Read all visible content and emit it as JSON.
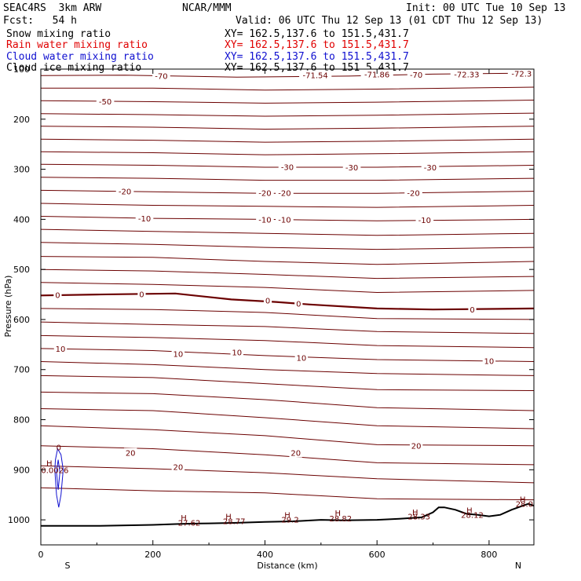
{
  "header": {
    "model": "SEAC4RS  3km ARW",
    "center": "NCAR/MMM",
    "init": "Init: 00 UTC Tue 10 Sep 13",
    "fcst": "Fcst:   54 h",
    "valid": "Valid: 06 UTC Thu 12 Sep 13 (01 CDT Thu 12 Sep 13)"
  },
  "legend": [
    {
      "name": "Snow mixing ratio",
      "color": "#000000",
      "xy": "XY= 162.5,137.6 to 151.5,431.7"
    },
    {
      "name": "Rain water mixing ratio",
      "color": "#e00000",
      "xy": "XY= 162.5,137.6 to 151.5,431.7"
    },
    {
      "name": "Cloud water mixing ratio",
      "color": "#1010d0",
      "xy": "XY= 162.5,137.6 to 151.5,431.7"
    },
    {
      "name": "Cloud ice mixing ratio",
      "color": "#000000",
      "xy": "XY= 162.5,137.6 to 151.5,431.7"
    }
  ],
  "colors": {
    "isotherm": "#6b0000",
    "terrain": "#000000",
    "cloud": "#1010d0"
  },
  "chart_data": {
    "type": "line",
    "xlabel": "Distance (km)",
    "ylabel": "Pressure (hPa)",
    "xlim": [
      0,
      880
    ],
    "ylim": [
      1050,
      100
    ],
    "x_ticks": [
      0,
      200,
      400,
      600,
      800
    ],
    "y_ticks": [
      100,
      200,
      300,
      400,
      500,
      600,
      700,
      800,
      900,
      1000
    ],
    "left_label": "S",
    "right_label": "N",
    "isotherms": [
      {
        "value": "-70",
        "points": [
          [
            0,
            113
          ],
          [
            150,
            112
          ],
          [
            350,
            116
          ],
          [
            550,
            114
          ],
          [
            700,
            110
          ],
          [
            880,
            108
          ]
        ]
      },
      {
        "value": "",
        "points": [
          [
            0,
            138
          ],
          [
            200,
            138
          ],
          [
            400,
            142
          ],
          [
            600,
            140
          ],
          [
            880,
            136
          ]
        ]
      },
      {
        "value": "-50",
        "points": [
          [
            0,
            163
          ],
          [
            200,
            165
          ],
          [
            400,
            168
          ],
          [
            600,
            166
          ],
          [
            880,
            162
          ]
        ]
      },
      {
        "value": "",
        "points": [
          [
            0,
            189
          ],
          [
            200,
            191
          ],
          [
            400,
            194
          ],
          [
            600,
            192
          ],
          [
            880,
            188
          ]
        ]
      },
      {
        "value": "",
        "points": [
          [
            0,
            214
          ],
          [
            200,
            216
          ],
          [
            400,
            220
          ],
          [
            600,
            218
          ],
          [
            880,
            214
          ]
        ]
      },
      {
        "value": "",
        "points": [
          [
            0,
            240
          ],
          [
            200,
            242
          ],
          [
            400,
            246
          ],
          [
            600,
            244
          ],
          [
            880,
            240
          ]
        ]
      },
      {
        "value": "",
        "points": [
          [
            0,
            265
          ],
          [
            200,
            267
          ],
          [
            400,
            271
          ],
          [
            600,
            269
          ],
          [
            880,
            265
          ]
        ]
      },
      {
        "value": "-30",
        "points": [
          [
            0,
            290
          ],
          [
            200,
            292
          ],
          [
            400,
            296
          ],
          [
            600,
            296
          ],
          [
            880,
            292
          ]
        ]
      },
      {
        "value": "",
        "points": [
          [
            0,
            316
          ],
          [
            200,
            318
          ],
          [
            400,
            322
          ],
          [
            600,
            322
          ],
          [
            880,
            318
          ]
        ]
      },
      {
        "value": "-20",
        "points": [
          [
            0,
            342
          ],
          [
            200,
            345
          ],
          [
            400,
            348
          ],
          [
            600,
            348
          ],
          [
            880,
            344
          ]
        ]
      },
      {
        "value": "",
        "points": [
          [
            0,
            368
          ],
          [
            200,
            372
          ],
          [
            400,
            374
          ],
          [
            600,
            376
          ],
          [
            880,
            372
          ]
        ]
      },
      {
        "value": "-10",
        "points": [
          [
            0,
            394
          ],
          [
            200,
            398
          ],
          [
            400,
            400
          ],
          [
            600,
            403
          ],
          [
            880,
            400
          ]
        ]
      },
      {
        "value": "",
        "points": [
          [
            0,
            420
          ],
          [
            200,
            424
          ],
          [
            400,
            428
          ],
          [
            600,
            432
          ],
          [
            880,
            428
          ]
        ]
      },
      {
        "value": "",
        "points": [
          [
            0,
            446
          ],
          [
            200,
            450
          ],
          [
            400,
            456
          ],
          [
            600,
            460
          ],
          [
            880,
            456
          ]
        ]
      },
      {
        "value": "",
        "points": [
          [
            0,
            474
          ],
          [
            200,
            476
          ],
          [
            400,
            484
          ],
          [
            600,
            490
          ],
          [
            880,
            484
          ]
        ]
      },
      {
        "value": "",
        "points": [
          [
            0,
            500
          ],
          [
            200,
            503
          ],
          [
            400,
            510
          ],
          [
            600,
            518
          ],
          [
            880,
            514
          ]
        ]
      },
      {
        "value": "",
        "points": [
          [
            0,
            526
          ],
          [
            200,
            530
          ],
          [
            400,
            536
          ],
          [
            600,
            546
          ],
          [
            880,
            542
          ]
        ]
      },
      {
        "value": "0",
        "bold": true,
        "points": [
          [
            0,
            552
          ],
          [
            100,
            550
          ],
          [
            240,
            548
          ],
          [
            340,
            560
          ],
          [
            420,
            565
          ],
          [
            480,
            570
          ],
          [
            600,
            578
          ],
          [
            700,
            580
          ],
          [
            880,
            578
          ]
        ]
      },
      {
        "value": "",
        "points": [
          [
            0,
            578
          ],
          [
            200,
            580
          ],
          [
            400,
            586
          ],
          [
            600,
            598
          ],
          [
            880,
            600
          ]
        ]
      },
      {
        "value": "",
        "points": [
          [
            0,
            605
          ],
          [
            200,
            610
          ],
          [
            400,
            614
          ],
          [
            600,
            624
          ],
          [
            880,
            628
          ]
        ]
      },
      {
        "value": "",
        "points": [
          [
            0,
            632
          ],
          [
            200,
            636
          ],
          [
            400,
            642
          ],
          [
            600,
            652
          ],
          [
            880,
            656
          ]
        ]
      },
      {
        "value": "10",
        "points": [
          [
            0,
            658
          ],
          [
            200,
            662
          ],
          [
            400,
            672
          ],
          [
            600,
            680
          ],
          [
            880,
            684
          ]
        ]
      },
      {
        "value": "",
        "points": [
          [
            0,
            684
          ],
          [
            200,
            690
          ],
          [
            400,
            700
          ],
          [
            600,
            708
          ],
          [
            880,
            712
          ]
        ]
      },
      {
        "value": "",
        "points": [
          [
            0,
            712
          ],
          [
            200,
            716
          ],
          [
            400,
            728
          ],
          [
            600,
            740
          ],
          [
            880,
            742
          ]
        ]
      },
      {
        "value": "",
        "points": [
          [
            0,
            745
          ],
          [
            200,
            748
          ],
          [
            400,
            760
          ],
          [
            600,
            776
          ],
          [
            880,
            782
          ]
        ]
      },
      {
        "value": "",
        "points": [
          [
            0,
            778
          ],
          [
            200,
            782
          ],
          [
            400,
            796
          ],
          [
            600,
            812
          ],
          [
            880,
            818
          ]
        ]
      },
      {
        "value": "20",
        "points": [
          [
            0,
            812
          ],
          [
            200,
            820
          ],
          [
            400,
            832
          ],
          [
            600,
            850
          ],
          [
            880,
            852
          ]
        ]
      },
      {
        "value": "",
        "points": [
          [
            0,
            852
          ],
          [
            200,
            858
          ],
          [
            400,
            870
          ],
          [
            600,
            886
          ],
          [
            880,
            890
          ]
        ]
      },
      {
        "value": "",
        "points": [
          [
            0,
            892
          ],
          [
            200,
            898
          ],
          [
            400,
            906
          ],
          [
            600,
            918
          ],
          [
            880,
            926
          ]
        ]
      },
      {
        "value": "",
        "points": [
          [
            0,
            936
          ],
          [
            200,
            942
          ],
          [
            400,
            946
          ],
          [
            600,
            958
          ],
          [
            880,
            960
          ]
        ]
      }
    ],
    "isotherm_labels": [
      {
        "text": "-70",
        "x": 215,
        "p": 113
      },
      {
        "text": "-71.54",
        "x": 490,
        "p": 112
      },
      {
        "text": "-71.86",
        "x": 600,
        "p": 110
      },
      {
        "text": "-70",
        "x": 670,
        "p": 111
      },
      {
        "text": "-72.33",
        "x": 760,
        "p": 110
      },
      {
        "text": "-72.3",
        "x": 858,
        "p": 109
      },
      {
        "text": "-50",
        "x": 115,
        "p": 164
      },
      {
        "text": "-30",
        "x": 440,
        "p": 295
      },
      {
        "text": "-30",
        "x": 555,
        "p": 296
      },
      {
        "text": "-30",
        "x": 695,
        "p": 296
      },
      {
        "text": "-20",
        "x": 150,
        "p": 344
      },
      {
        "text": "-20",
        "x": 400,
        "p": 347
      },
      {
        "text": "-20",
        "x": 435,
        "p": 347
      },
      {
        "text": "-20",
        "x": 665,
        "p": 347
      },
      {
        "text": "-10",
        "x": 185,
        "p": 398
      },
      {
        "text": "-10",
        "x": 400,
        "p": 400
      },
      {
        "text": "-10",
        "x": 435,
        "p": 400
      },
      {
        "text": "-10",
        "x": 685,
        "p": 401
      },
      {
        "text": "0",
        "x": 30,
        "p": 551
      },
      {
        "text": "0",
        "x": 180,
        "p": 549
      },
      {
        "text": "0",
        "x": 405,
        "p": 562
      },
      {
        "text": "0",
        "x": 460,
        "p": 568
      },
      {
        "text": "0",
        "x": 770,
        "p": 580
      },
      {
        "text": "10",
        "x": 35,
        "p": 658
      },
      {
        "text": "10",
        "x": 245,
        "p": 668
      },
      {
        "text": "10",
        "x": 350,
        "p": 665
      },
      {
        "text": "10",
        "x": 465,
        "p": 676
      },
      {
        "text": "10",
        "x": 800,
        "p": 682
      },
      {
        "text": "20",
        "x": 160,
        "p": 866
      },
      {
        "text": "20",
        "x": 245,
        "p": 894
      },
      {
        "text": "20",
        "x": 455,
        "p": 866
      },
      {
        "text": "20",
        "x": 670,
        "p": 852
      }
    ],
    "terrain": [
      [
        0,
        1012
      ],
      [
        100,
        1012
      ],
      [
        200,
        1010
      ],
      [
        250,
        1008
      ],
      [
        300,
        1007
      ],
      [
        350,
        1006
      ],
      [
        400,
        1004
      ],
      [
        450,
        1003
      ],
      [
        500,
        1000
      ],
      [
        540,
        1001
      ],
      [
        600,
        1000
      ],
      [
        640,
        998
      ],
      [
        680,
        995
      ],
      [
        700,
        985
      ],
      [
        710,
        975
      ],
      [
        720,
        975
      ],
      [
        740,
        980
      ],
      [
        760,
        988
      ],
      [
        780,
        990
      ],
      [
        800,
        993
      ],
      [
        820,
        990
      ],
      [
        840,
        980
      ],
      [
        860,
        972
      ],
      [
        870,
        968
      ],
      [
        880,
        972
      ]
    ],
    "surface_labels": [
      {
        "text": "27.62",
        "x": 265,
        "p": 1005
      },
      {
        "text": "28.77",
        "x": 345,
        "p": 1002
      },
      {
        "text": "29.2",
        "x": 445,
        "p": 999
      },
      {
        "text": "28.82",
        "x": 535,
        "p": 997
      },
      {
        "text": "28.33",
        "x": 675,
        "p": 993
      },
      {
        "text": "28.12",
        "x": 770,
        "p": 990
      },
      {
        "text": "28.0",
        "x": 863,
        "p": 968
      }
    ],
    "highs": [
      {
        "text": "H",
        "x": 255,
        "p": 995
      },
      {
        "text": "H",
        "x": 335,
        "p": 993
      },
      {
        "text": "H",
        "x": 440,
        "p": 990
      },
      {
        "text": "H",
        "x": 530,
        "p": 986
      },
      {
        "text": "H",
        "x": 668,
        "p": 984
      },
      {
        "text": "H",
        "x": 765,
        "p": 980
      },
      {
        "text": "H",
        "x": 860,
        "p": 958
      },
      {
        "text": "H",
        "x": 15,
        "p": 886
      }
    ],
    "cloud_contours": [
      {
        "points": [
          [
            25,
            900
          ],
          [
            28,
            950
          ],
          [
            32,
            975
          ],
          [
            36,
            950
          ],
          [
            40,
            900
          ],
          [
            36,
            870
          ],
          [
            30,
            858
          ],
          [
            26,
            880
          ],
          [
            25,
            900
          ]
        ]
      },
      {
        "points": [
          [
            28,
            905
          ],
          [
            31,
            940
          ],
          [
            34,
            905
          ],
          [
            31,
            880
          ],
          [
            28,
            905
          ]
        ]
      }
    ],
    "cloud_labels": [
      {
        "text": "0",
        "x": 32,
        "p": 855
      },
      {
        "text": "0.0026",
        "x": 25,
        "p": 900
      }
    ]
  }
}
